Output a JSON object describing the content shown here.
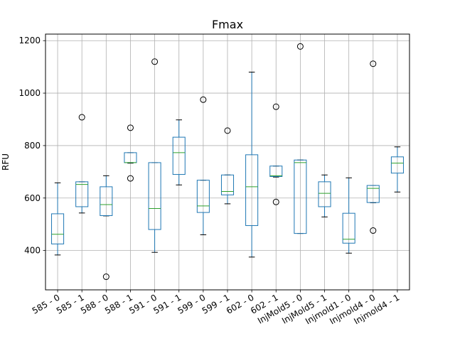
{
  "chart_data": {
    "type": "boxplot",
    "title": "Fmax",
    "ylabel": "RFU",
    "xlabel": "",
    "ylim": [
      250,
      1225
    ],
    "yticks": [
      400,
      600,
      800,
      1000,
      1200
    ],
    "grid": true,
    "categories": [
      "585 - 0",
      "585 - 1",
      "588 - 0",
      "588 - 1",
      "591 - 0",
      "591 - 1",
      "599 - 0",
      "599 - 1",
      "602 - 0",
      "602 - 1",
      "InjMold5 - 0",
      "InjMold5 - 1",
      "Injmold1 - 0",
      "Injmold4 - 0",
      "Injmold4 - 1"
    ],
    "boxes": [
      {
        "whislo": 383,
        "q1": 425,
        "med": 462,
        "q3": 540,
        "whishi": 658,
        "fliers": []
      },
      {
        "whislo": 543,
        "q1": 567,
        "med": 652,
        "q3": 662,
        "whishi": 662,
        "fliers": [
          908
        ]
      },
      {
        "whislo": 532,
        "q1": 533,
        "med": 575,
        "q3": 643,
        "whishi": 685,
        "fliers": [
          300
        ]
      },
      {
        "whislo": 733,
        "q1": 735,
        "med": 735,
        "q3": 773,
        "whishi": 773,
        "fliers": [
          868,
          675
        ]
      },
      {
        "whislo": 393,
        "q1": 480,
        "med": 560,
        "q3": 735,
        "whishi": 735,
        "fliers": [
          1120
        ]
      },
      {
        "whislo": 650,
        "q1": 690,
        "med": 773,
        "q3": 832,
        "whishi": 898,
        "fliers": []
      },
      {
        "whislo": 460,
        "q1": 545,
        "med": 570,
        "q3": 668,
        "whishi": 668,
        "fliers": [
          975
        ]
      },
      {
        "whislo": 578,
        "q1": 612,
        "med": 625,
        "q3": 688,
        "whishi": 688,
        "fliers": [
          857
        ]
      },
      {
        "whislo": 375,
        "q1": 495,
        "med": 643,
        "q3": 765,
        "whishi": 1080,
        "fliers": []
      },
      {
        "whislo": 680,
        "q1": 682,
        "med": 685,
        "q3": 722,
        "whishi": 722,
        "fliers": [
          948,
          585
        ]
      },
      {
        "whislo": 465,
        "q1": 465,
        "med": 735,
        "q3": 745,
        "whishi": 745,
        "fliers": [
          1178
        ]
      },
      {
        "whislo": 528,
        "q1": 567,
        "med": 618,
        "q3": 662,
        "whishi": 688,
        "fliers": []
      },
      {
        "whislo": 390,
        "q1": 428,
        "med": 443,
        "q3": 542,
        "whishi": 677,
        "fliers": []
      },
      {
        "whislo": 582,
        "q1": 583,
        "med": 637,
        "q3": 648,
        "whishi": 648,
        "fliers": [
          1112,
          476
        ]
      },
      {
        "whislo": 623,
        "q1": 695,
        "med": 733,
        "q3": 757,
        "whishi": 795,
        "fliers": []
      }
    ],
    "colors": {
      "box": "#1f77b4",
      "median": "#2ca02c",
      "grid": "#b0b0b0"
    }
  }
}
